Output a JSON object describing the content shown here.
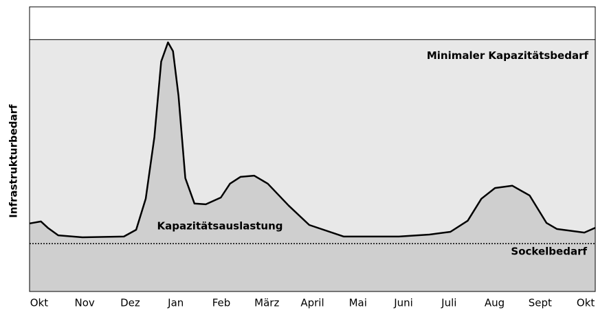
{
  "chart_data": {
    "type": "area",
    "ylabel": "Infrastrukturbedarf",
    "x": [
      -0.21,
      0.04,
      0.19,
      0.42,
      0.95,
      1.86,
      2.13,
      2.34,
      2.53,
      2.68,
      2.83,
      2.94,
      3.06,
      3.21,
      3.41,
      3.66,
      3.99,
      4.19,
      4.42,
      4.72,
      5.02,
      5.48,
      5.93,
      6.69,
      7.9,
      8.57,
      9.03,
      9.41,
      9.71,
      10.01,
      10.39,
      10.77,
      11.14,
      11.37,
      11.97,
      12.21
    ],
    "values": [
      27.0,
      27.8,
      25.3,
      22.3,
      21.5,
      21.8,
      24.5,
      36.8,
      61.3,
      91.3,
      98.9,
      95.4,
      77.7,
      45.0,
      34.9,
      34.6,
      37.3,
      42.8,
      45.5,
      46.0,
      42.8,
      34.1,
      26.4,
      21.8,
      21.8,
      22.6,
      23.7,
      28.1,
      36.8,
      41.1,
      42.0,
      38.1,
      27.2,
      24.8,
      23.4,
      25.3
    ],
    "color": "#cfcfcf",
    "background_color": "#e8e8e8",
    "xlim": [
      -0.21,
      12.21
    ],
    "ylim": [
      0,
      113
    ],
    "xticks": [
      {
        "value": 0,
        "label": "Okt"
      },
      {
        "value": 1,
        "label": "Nov"
      },
      {
        "value": 2,
        "label": "Dez"
      },
      {
        "value": 3,
        "label": "Jan"
      },
      {
        "value": 4,
        "label": "Feb"
      },
      {
        "value": 5,
        "label": "März"
      },
      {
        "value": 6,
        "label": "April"
      },
      {
        "value": 7,
        "label": "Mai"
      },
      {
        "value": 8,
        "label": "Juni"
      },
      {
        "value": 9,
        "label": "Juli"
      },
      {
        "value": 10,
        "label": "Aug"
      },
      {
        "value": 11,
        "label": "Sept"
      },
      {
        "value": 12,
        "label": "Okt"
      }
    ],
    "capacity": {
      "label": "Minimaler Kapazitätsbedarf",
      "value": 100
    },
    "baseline": {
      "label": "Sockelbedarf",
      "value": 19
    },
    "area_label": "Kapazitätsauslastung"
  }
}
